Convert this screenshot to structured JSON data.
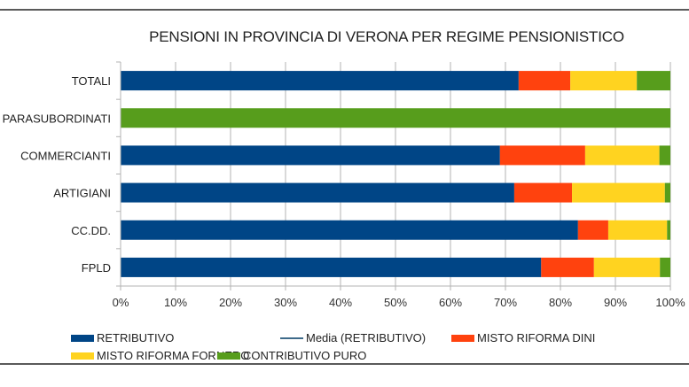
{
  "chart_data": {
    "type": "bar",
    "orientation": "horizontal",
    "stacked": "percent",
    "title": "PENSIONI IN PROVINCIA DI VERONA PER REGIME PENSIONISTICO",
    "xlabel": "",
    "ylabel": "",
    "xlim": [
      0,
      100
    ],
    "x_ticks": [
      "0%",
      "10%",
      "20%",
      "30%",
      "40%",
      "50%",
      "60%",
      "70%",
      "80%",
      "90%",
      "100%"
    ],
    "grid": true,
    "legend_position": "bottom",
    "categories": [
      "TOTALI",
      "PARASUBORDINATI",
      "COMMERCIANTI",
      "ARTIGIANI",
      "CC.DD.",
      "FPLD"
    ],
    "series": [
      {
        "name": "RETRIBUTIVO",
        "color": "#004586",
        "values": [
          72.4,
          0,
          69.0,
          71.6,
          83.2,
          76.5
        ]
      },
      {
        "name": "MISTO RIFORMA DINI",
        "color": "#ff420e",
        "values": [
          9.4,
          0,
          15.5,
          10.5,
          5.5,
          9.6
        ]
      },
      {
        "name": "MISTO RIFORMA FORNERO",
        "color": "#ffd320",
        "values": [
          12.1,
          0,
          13.5,
          16.9,
          10.7,
          12.0
        ]
      },
      {
        "name": "CONTRIBUTIVO PURO",
        "color": "#579d1c",
        "values": [
          6.1,
          100,
          2.0,
          1.0,
          0.6,
          1.9
        ]
      }
    ],
    "legend": [
      {
        "label": "RETRIBUTIVO",
        "kind": "box",
        "color": "#004586"
      },
      {
        "label": "Media (RETRIBUTIVO)",
        "kind": "line",
        "color": "#3e6a8a"
      },
      {
        "label": "MISTO RIFORMA DINI",
        "kind": "box",
        "color": "#ff420e"
      },
      {
        "label": "MISTO RIFORMA FORNERO",
        "kind": "box",
        "color": "#ffd320"
      },
      {
        "label": "CONTRIBUTIVO PURO",
        "kind": "box",
        "color": "#579d1c"
      }
    ]
  }
}
